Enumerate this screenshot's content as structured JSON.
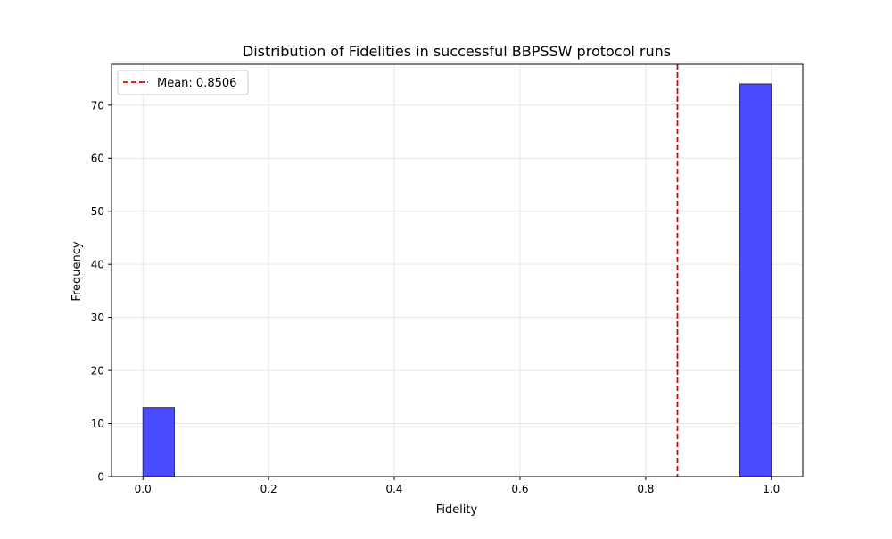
{
  "chart_data": {
    "type": "bar",
    "subtype": "histogram",
    "title": "Distribution of Fidelities in successful BBPSSW protocol runs",
    "xlabel": "Fidelity",
    "ylabel": "Frequency",
    "xlim": [
      -0.05,
      1.05
    ],
    "ylim": [
      0,
      77.7
    ],
    "xticks": [
      0.0,
      0.2,
      0.4,
      0.6,
      0.8,
      1.0
    ],
    "xtick_labels": [
      "0.0",
      "0.2",
      "0.4",
      "0.6",
      "0.8",
      "1.0"
    ],
    "yticks": [
      0,
      10,
      20,
      30,
      40,
      50,
      60,
      70
    ],
    "ytick_labels": [
      "0",
      "10",
      "20",
      "30",
      "40",
      "50",
      "60",
      "70"
    ],
    "grid": true,
    "bins": [
      {
        "x0": 0.0,
        "x1": 0.05,
        "count": 13
      },
      {
        "x0": 0.05,
        "x1": 0.1,
        "count": 0
      },
      {
        "x0": 0.1,
        "x1": 0.15,
        "count": 0
      },
      {
        "x0": 0.15,
        "x1": 0.2,
        "count": 0
      },
      {
        "x0": 0.2,
        "x1": 0.25,
        "count": 0
      },
      {
        "x0": 0.25,
        "x1": 0.3,
        "count": 0
      },
      {
        "x0": 0.3,
        "x1": 0.35,
        "count": 0
      },
      {
        "x0": 0.35,
        "x1": 0.4,
        "count": 0
      },
      {
        "x0": 0.4,
        "x1": 0.45,
        "count": 0
      },
      {
        "x0": 0.45,
        "x1": 0.5,
        "count": 0
      },
      {
        "x0": 0.5,
        "x1": 0.55,
        "count": 0
      },
      {
        "x0": 0.55,
        "x1": 0.6,
        "count": 0
      },
      {
        "x0": 0.6,
        "x1": 0.65,
        "count": 0
      },
      {
        "x0": 0.65,
        "x1": 0.7,
        "count": 0
      },
      {
        "x0": 0.7,
        "x1": 0.75,
        "count": 0
      },
      {
        "x0": 0.75,
        "x1": 0.8,
        "count": 0
      },
      {
        "x0": 0.8,
        "x1": 0.85,
        "count": 0
      },
      {
        "x0": 0.85,
        "x1": 0.9,
        "count": 0
      },
      {
        "x0": 0.9,
        "x1": 0.95,
        "count": 0
      },
      {
        "x0": 0.95,
        "x1": 1.0,
        "count": 74
      }
    ],
    "bar_color": "#4b4bff",
    "bar_edge_color": "#2a2a55",
    "mean_line": {
      "x": 0.8506,
      "color": "#e00000",
      "style": "dashed"
    },
    "legend": {
      "position": "top-left",
      "entries": [
        {
          "label": "Mean: 0.8506",
          "color": "#e00000",
          "style": "dashed"
        }
      ]
    }
  }
}
